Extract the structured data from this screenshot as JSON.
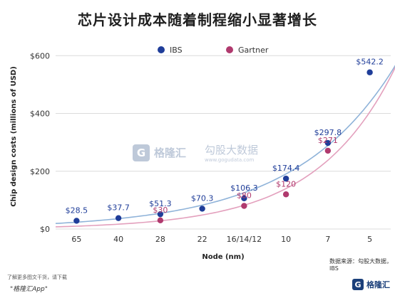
{
  "chart_data": {
    "type": "scatter",
    "title": "芯片设计成本随着制程缩小显著增长",
    "xlabel": "Node (nm)",
    "ylabel": "Chip design costs (millions of USD)",
    "categories": [
      "65",
      "40",
      "28",
      "22",
      "16/14/12",
      "10",
      "7",
      "5"
    ],
    "yticks": [
      "$0",
      "$200",
      "$400",
      "$600"
    ],
    "ylim": [
      0,
      640
    ],
    "grid": "horizontal",
    "legend_position": "top",
    "series": [
      {
        "name": "IBS",
        "color": "#1f3d99",
        "values": [
          28.5,
          37.7,
          51.3,
          70.3,
          106.3,
          174.4,
          297.8,
          542.2
        ],
        "labels": [
          "$28.5",
          "$37.7",
          "$51.3",
          "$70.3",
          "$106.3",
          "$174.4",
          "$297.8",
          "$542.2"
        ]
      },
      {
        "name": "Gartner",
        "color": "#b03a6e",
        "values": [
          null,
          null,
          30,
          null,
          80,
          120,
          271,
          null
        ],
        "labels": [
          null,
          null,
          "$30",
          null,
          "$80",
          "$120",
          "$271",
          null
        ]
      }
    ],
    "trendlines": [
      {
        "series": "IBS",
        "color": "#8fb3d9"
      },
      {
        "series": "Gartner",
        "color": "#e3a0bd"
      }
    ]
  },
  "source_note": "数据来源：勾股大数据，IBS",
  "watermark": {
    "brand": "格隆汇",
    "sub": "勾股大数据",
    "url": "www.gogudata.com"
  },
  "footer": {
    "hint": "了解更多图文干货，请下载",
    "app": "\"格隆汇App\""
  },
  "brand_logo": {
    "glyph": "G",
    "text": "格隆汇"
  }
}
